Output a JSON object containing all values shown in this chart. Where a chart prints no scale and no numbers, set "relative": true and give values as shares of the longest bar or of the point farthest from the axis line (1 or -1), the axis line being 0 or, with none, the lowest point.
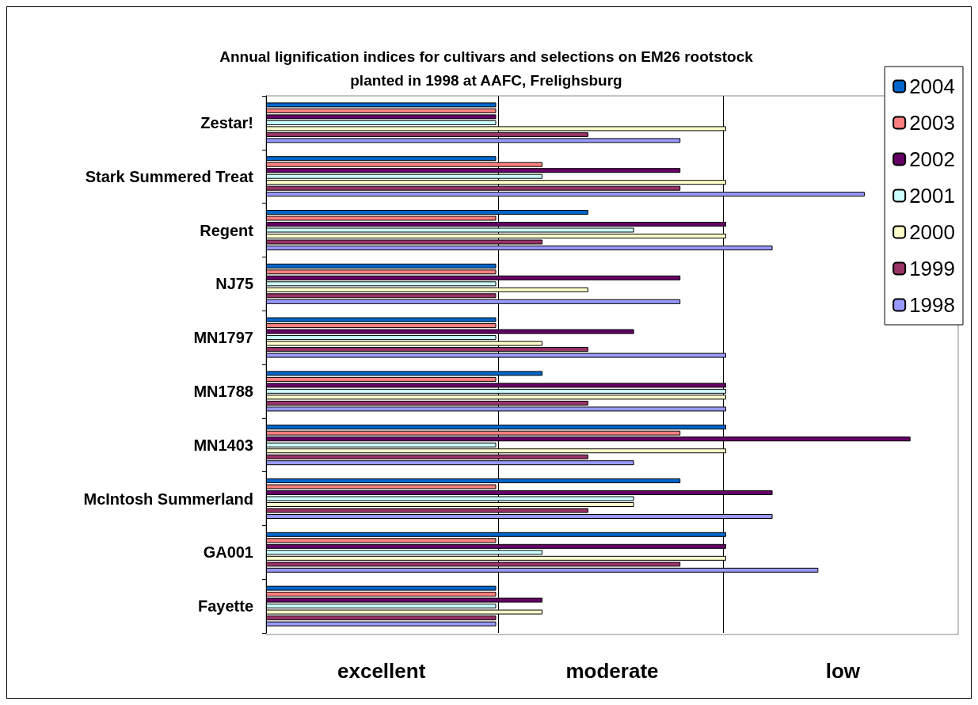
{
  "chart_data": {
    "type": "bar",
    "orientation": "horizontal",
    "relative": true,
    "title": "Annual lignification indices for cultivars and selections on EM26 rootstock\nplanted in 1998 at AAFC, Frelighsburg",
    "categories": [
      "Zestar!",
      "Stark Summered Treat",
      "Regent",
      "NJ75",
      "MN1797",
      "MN1788",
      "MN1403",
      "McIntosh Summerland",
      "GA001",
      "Fayette"
    ],
    "annotations": [
      "excellent",
      "moderate",
      "low"
    ],
    "ref_lines": [
      {
        "axis": "x",
        "value": 0.357,
        "color": "#000000",
        "line_style": "solid"
      },
      {
        "axis": "x",
        "value": 0.714,
        "color": "#000000",
        "line_style": "solid"
      }
    ],
    "legend": "top right",
    "series": [
      {
        "name": "2004",
        "color": "#0066cc",
        "values": [
          0.357,
          0.357,
          0.5,
          0.357,
          0.357,
          0.429,
          0.714,
          0.643,
          0.714,
          0.357
        ]
      },
      {
        "name": "2003",
        "color": "#ff8080",
        "values": [
          0.357,
          0.429,
          0.357,
          0.357,
          0.357,
          0.357,
          0.643,
          0.357,
          0.357,
          0.357
        ]
      },
      {
        "name": "2002",
        "color": "#660066",
        "values": [
          0.357,
          0.643,
          0.714,
          0.643,
          0.571,
          0.714,
          1,
          0.786,
          0.714,
          0.429
        ]
      },
      {
        "name": "2001",
        "color": "#ccffff",
        "values": [
          0.357,
          0.429,
          0.571,
          0.357,
          0.357,
          0.714,
          0.357,
          0.571,
          0.429,
          0.357
        ]
      },
      {
        "name": "2000",
        "color": "#ffffcc",
        "values": [
          0.714,
          0.714,
          0.714,
          0.5,
          0.429,
          0.714,
          0.714,
          0.571,
          0.714,
          0.429
        ]
      },
      {
        "name": "1999",
        "color": "#993366",
        "values": [
          0.5,
          0.643,
          0.429,
          0.357,
          0.5,
          0.5,
          0.5,
          0.5,
          0.643,
          0.357
        ]
      },
      {
        "name": "1998",
        "color": "#9999ff",
        "values": [
          0.643,
          0.929,
          0.786,
          0.643,
          0.714,
          0.714,
          0.571,
          0.786,
          0.857,
          0.357
        ]
      }
    ]
  }
}
